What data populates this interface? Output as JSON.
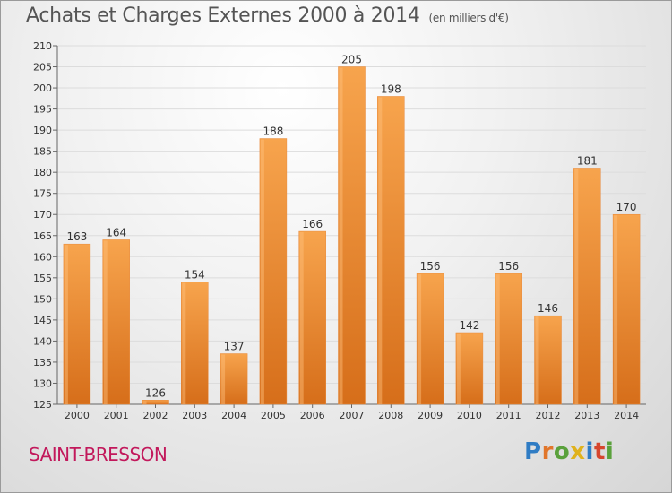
{
  "header": {
    "title": "Achats et Charges Externes 2000 à 2014",
    "subtitle": "(en milliers d'€)"
  },
  "footer": {
    "town": "SAINT-BRESSON",
    "brand": "Proxiti"
  },
  "colors": {
    "bar_light": "#f7a44d",
    "bar_dark": "#d66e1a",
    "town_text": "#c2185b"
  },
  "chart_data": {
    "type": "bar",
    "title": "Achats et Charges Externes 2000 à 2014",
    "subtitle": "(en milliers d'€)",
    "xlabel": "",
    "ylabel": "",
    "categories": [
      "2000",
      "2001",
      "2002",
      "2003",
      "2004",
      "2005",
      "2006",
      "2007",
      "2008",
      "2009",
      "2010",
      "2011",
      "2012",
      "2013",
      "2014"
    ],
    "values": [
      163,
      164,
      126,
      154,
      137,
      188,
      166,
      205,
      198,
      156,
      142,
      156,
      146,
      181,
      170
    ],
    "ylim": [
      125,
      210
    ],
    "yticks": [
      125,
      130,
      135,
      140,
      145,
      150,
      155,
      160,
      165,
      170,
      175,
      180,
      185,
      190,
      195,
      200,
      205,
      210
    ],
    "grid": true,
    "data_labels": true
  }
}
